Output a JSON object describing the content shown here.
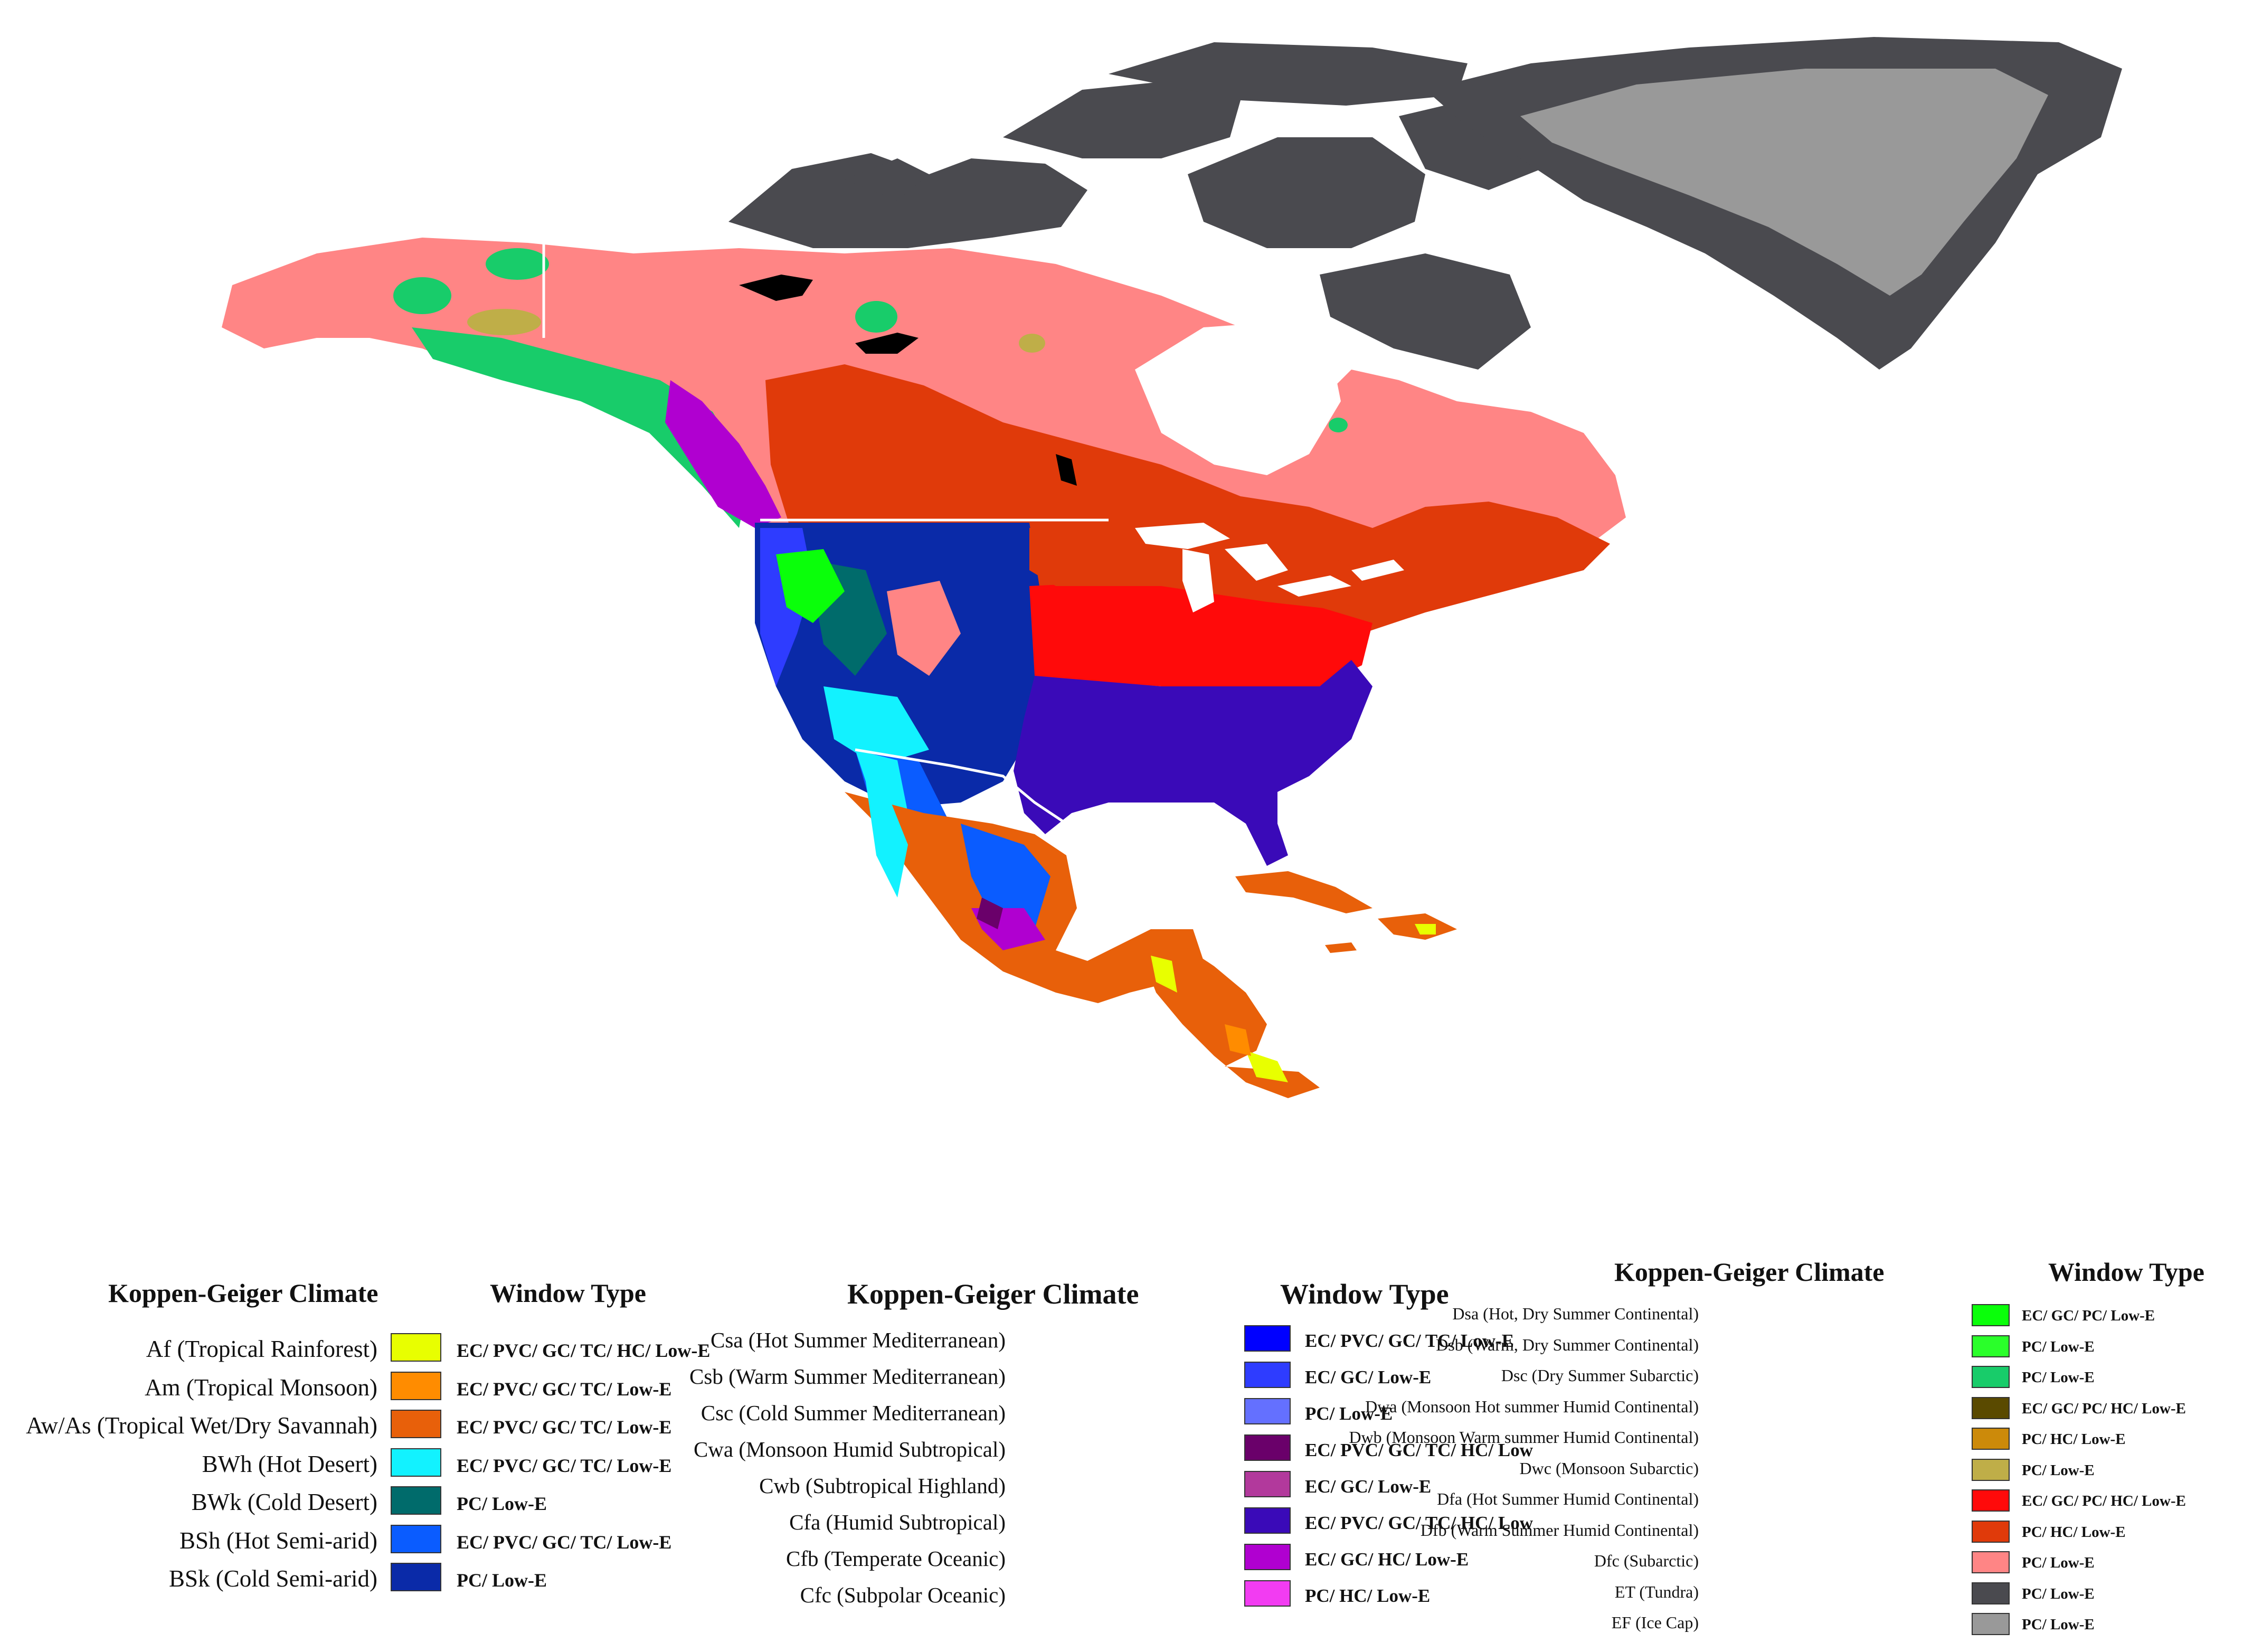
{
  "colors": {
    "background": "#ffffff",
    "border_line": "#ffffff",
    "lake": "#000000"
  },
  "legend_left": {
    "header_climate": "Koppen-Geiger Climate",
    "header_window": "Window Type",
    "items": [
      {
        "label": "Af (Tropical Rainforest)",
        "window": "EC/ PVC/ GC/ TC/ HC/ Low-E",
        "color": "#e8ff00"
      },
      {
        "label": "Am (Tropical Monsoon)",
        "window": "EC/ PVC/ GC/ TC/ Low-E",
        "color": "#ff8c00"
      },
      {
        "label": "Aw/As (Tropical Wet/Dry Savannah)",
        "window": "EC/ PVC/ GC/ TC/ Low-E",
        "color": "#e8600a"
      },
      {
        "label": "BWh (Hot Desert)",
        "window": "EC/ PVC/ GC/ TC/ Low-E",
        "color": "#12f2ff"
      },
      {
        "label": "BWk (Cold Desert)",
        "window": "PC/ Low-E",
        "color": "#006b6b"
      },
      {
        "label": "BSh (Hot Semi-arid)",
        "window": "EC/ PVC/ GC/ TC/ Low-E",
        "color": "#0a5cff"
      },
      {
        "label": "BSk (Cold Semi-arid)",
        "window": "PC/ Low-E",
        "color": "#0a2aa8"
      }
    ]
  },
  "legend_middle": {
    "header_climate": "Koppen-Geiger Climate",
    "header_window": "Window Type",
    "items": [
      {
        "label": "Csa (Hot Summer Mediterranean)",
        "window": "EC/ PVC/ GC/ TC/ Low-E",
        "color": "#0000ff"
      },
      {
        "label": "Csb (Warm Summer Mediterranean)",
        "window": "EC/ GC/ Low-E",
        "color": "#2e3cff"
      },
      {
        "label": "Csc (Cold Summer Mediterranean)",
        "window": "PC/ Low-E",
        "color": "#6470ff"
      },
      {
        "label": "Cwa (Monsoon Humid Subtropical)",
        "window": "EC/ PVC/ GC/ TC/ HC/ Low",
        "color": "#6a006a"
      },
      {
        "label": "Cwb (Subtropical Highland)",
        "window": "EC/ GC/ Low-E",
        "color": "#b2399c"
      },
      {
        "label": "Cfa (Humid Subtropical)",
        "window": "EC/ PVC/ GC/ TC/ HC/ Low",
        "color": "#3a0ab8"
      },
      {
        "label": "Cfb (Temperate Oceanic)",
        "window": "EC/ GC/ HC/ Low-E",
        "color": "#b000d0"
      },
      {
        "label": "Cfc (Subpolar Oceanic)",
        "window": "PC/ HC/ Low-E",
        "color": "#f23cf2"
      }
    ]
  },
  "legend_right": {
    "header_climate": "Koppen-Geiger Climate",
    "header_window": "Window Type",
    "items": [
      {
        "label": "Dsa (Hot, Dry Summer Continental)",
        "window": "EC/ GC/ PC/ Low-E",
        "color": "#0aff0a"
      },
      {
        "label": "Dsb (Warm, Dry Summer Continental)",
        "window": "PC/ Low-E",
        "color": "#2aff2a"
      },
      {
        "label": "Dsc (Dry Summer Subarctic)",
        "window": "PC/ Low-E",
        "color": "#18cc6a"
      },
      {
        "label": "Dwa (Monsoon Hot summer Humid Continental)",
        "window": "EC/ GC/ PC/ HC/ Low-E",
        "color": "#5a4a00"
      },
      {
        "label": "Dwb (Monsoon Warm summer Humid Continental)",
        "window": "PC/ HC/ Low-E",
        "color": "#cc8a0a"
      },
      {
        "label": "Dwc (Monsoon Subarctic)",
        "window": "PC/ Low-E",
        "color": "#bfae48"
      },
      {
        "label": "Dfa (Hot Summer Humid Continental)",
        "window": "EC/ GC/ PC/ HC/ Low-E",
        "color": "#ff0a0a"
      },
      {
        "label": "Dfb (Warm Summer Humid Continental)",
        "window": "PC/ HC/ Low-E",
        "color": "#e03a0a"
      },
      {
        "label": "Dfc (Subarctic)",
        "window": "PC/ Low-E",
        "color": "#ff8585"
      },
      {
        "label": "ET (Tundra)",
        "window": "PC/ Low-E",
        "color": "#4a4a4f"
      },
      {
        "label": "EF (Ice Cap)",
        "window": "PC/ Low-E",
        "color": "#999999"
      }
    ]
  }
}
